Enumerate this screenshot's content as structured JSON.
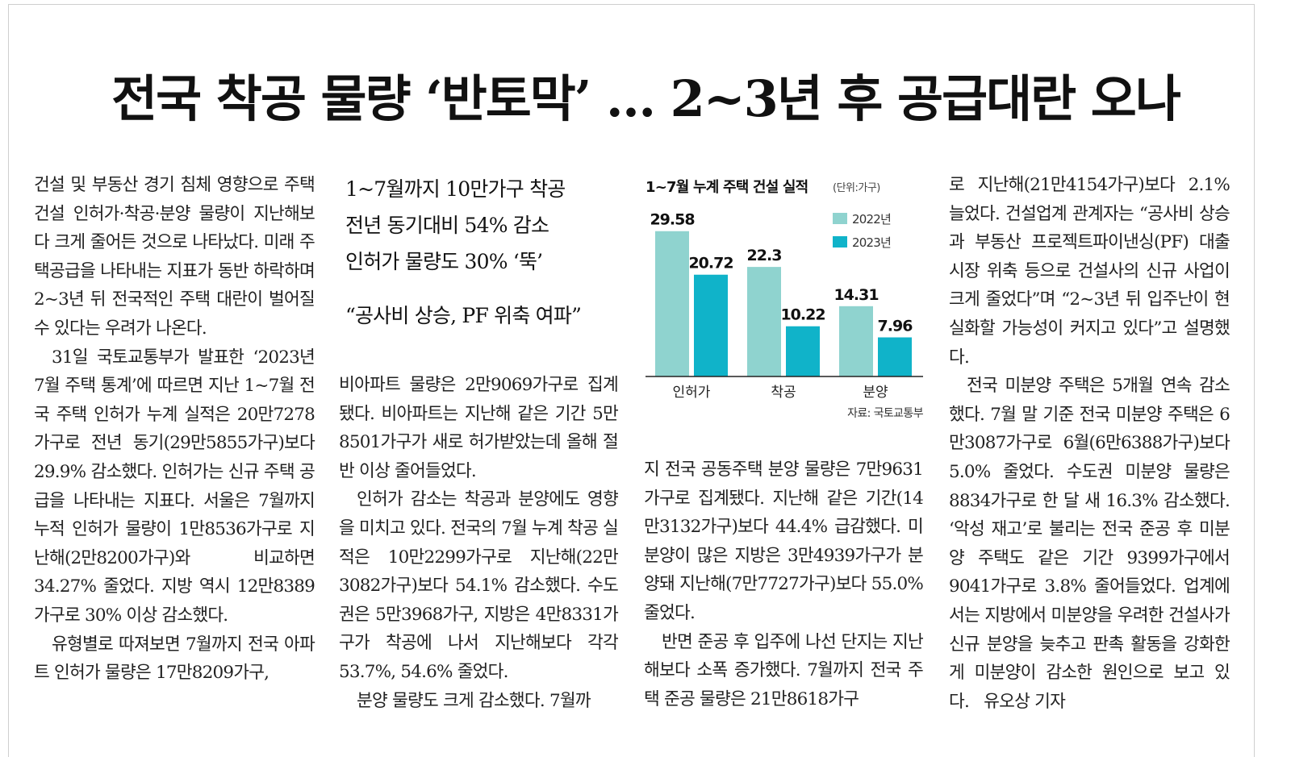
{
  "headline": "전국 착공 물량 ‘반토막’ … 2~3년 후 공급대란 오나",
  "col1": [
    "건설 및 부동산 경기 침체 영향으로 주택건설 인허가·착공·분양 물량이 지난해보다 크게 줄어든 것으로 나타났다. 미래 주택공급을 나타내는 지표가 동반 하락하며 2~3년 뒤 전국적인 주택 대란이 벌어질 수 있다는 우려가 나온다.",
    "31일 국토교통부가 발표한 ‘2023년 7월 주택 통계’에 따르면 지난 1~7월 전국 주택 인허가 누계 실적은 20만7278가구로 전년 동기(29만5855가구)보다 29.9% 감소했다. 인허가는 신규 주택 공급을 나타내는 지표다. 서울은 7월까지 누적 인허가 물량이 1만8536가구로 지난해(2만8200가구)와 비교하면 34.27% 줄었다. 지방 역시 12만8389가구로 30% 이상 감소했다.",
    "유형별로 따져보면 7월까지 전국 아파트 인허가 물량은 17만8209가구,"
  ],
  "subhead": {
    "lines": [
      "1~7월까지 10만가구 착공",
      "전년 동기대비 54% 감소",
      "인허가 물량도 30% ‘뚝’"
    ],
    "quote": "“공사비 상승, PF 위축 여파”"
  },
  "col2": [
    "비아파트 물량은 2만9069가구로 집계됐다. 비아파트는 지난해 같은 기간 5만8501가구가 새로 허가받았는데 올해 절반 이상 줄어들었다.",
    "인허가 감소는 착공과 분양에도 영향을 미치고 있다. 전국의 7월 누계 착공 실적은 10만2299가구로 지난해(22만3082가구)보다 54.1% 감소했다. 수도권은 5만3968가구, 지방은 4만8331가구가 착공에 나서 지난해보다 각각 53.7%, 54.6% 줄었다.",
    "분양 물량도 크게 감소했다. 7월까"
  ],
  "col3": [
    "지 전국 공동주택 분양 물량은 7만9631가구로 집계됐다. 지난해 같은 기간(14만3132가구)보다 44.4% 급감했다. 미분양이 많은 지방은 3만4939가구가 분양돼 지난해(7만7727가구)보다 55.0% 줄었다.",
    "반면 준공 후 입주에 나선 단지는 지난해보다 소폭 증가했다. 7월까지 전국 주택 준공 물량은 21만8618가구"
  ],
  "col4": [
    "로 지난해(21만4154가구)보다 2.1% 늘었다. 건설업계 관계자는 “공사비 상승과 부동산 프로젝트파이낸싱(PF) 대출 시장 위축 등으로 건설사의 신규 사업이 크게 줄었다”며 “2~3년 뒤 입주난이 현실화할 가능성이 커지고 있다”고 설명했다.",
    "전국 미분양 주택은 5개월 연속 감소했다. 7월 말 기준 전국 미분양 주택은 6만3087가구로 6월(6만6388가구)보다 5.0% 줄었다. 수도권 미분양 물량은 8834가구로 한 달 새 16.3% 감소했다. ‘악성 재고’로 불리는 전국 준공 후 미분양 주택도 같은 기간 9399가구에서 9041가구로 3.8% 줄어들었다. 업계에서는 지방에서 미분양을 우려한 건설사가 신규 분양을 늦추고 판촉 활동을 강화한 게 미분양이 감소한 원인으로 보고 있다.",
    "유오상 기자"
  ],
  "colors": {
    "series2022": "#8fd3cf",
    "series2023": "#10b3c9"
  },
  "chart_data": {
    "type": "bar",
    "title": "1~7월 누계 주택 건설 실적",
    "unit": "(단위:가구)",
    "source": "자료: 국토교통부",
    "categories": [
      "인허가",
      "착공",
      "분양"
    ],
    "series": [
      {
        "name": "2022년",
        "values": [
          29.58,
          22.3,
          14.31
        ]
      },
      {
        "name": "2023년",
        "values": [
          20.72,
          10.22,
          7.96
        ]
      }
    ],
    "ylim": [
      0,
      32
    ],
    "legend": "top-right",
    "grid": false
  }
}
